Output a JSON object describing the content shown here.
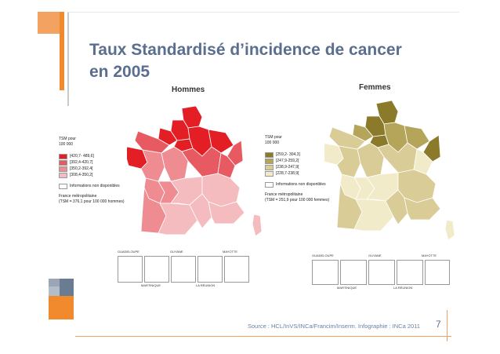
{
  "slide": {
    "title_line1": "Taux Standardisé d’incidence de cancer",
    "title_line2": "en 2005",
    "source": "Source : HCL/InVS/INCa/Francim/Inserm. Infographie : INCa 2011",
    "page_number": "7"
  },
  "panels": [
    {
      "title": "Hommes",
      "legend_header_1": "TSM pour",
      "legend_header_2": "100 000",
      "classes": [
        {
          "label": "[420,7- 489,6]",
          "color": "#e31e24"
        },
        {
          "label": "[392,4-420,7[",
          "color": "#e85a62"
        },
        {
          "label": "[350,2-392,4[",
          "color": "#ee8c92"
        },
        {
          "label": "[308,4-350,2[",
          "color": "#f5bcbf"
        }
      ],
      "na_label": "Informations non disponibles",
      "metro_label_1": "France métropolitaine",
      "metro_label_2": "(TSM = 376,1  pour 100 000 hommes)",
      "insets": [
        "GUADELOUPE",
        "GUYANE",
        "MAYOTTE",
        "MARTINIQUE",
        "LA RÉUNION"
      ]
    },
    {
      "title": "Femmes",
      "legend_header_1": "TSM pour",
      "legend_header_2": "100 000",
      "classes": [
        {
          "label": "[259,2- 304,3]",
          "color": "#8b7a2a"
        },
        {
          "label": "[247,9-259,2[",
          "color": "#b5a55a"
        },
        {
          "label": "[238,9-247,9[",
          "color": "#d9cc96"
        },
        {
          "label": "[228,7-238,9[",
          "color": "#f1ebc9"
        }
      ],
      "na_label": "Informations non disponibles",
      "metro_label_1": "France métropolitaine",
      "metro_label_2": "(TSM = 251,9  pour 100 000 femmes)",
      "insets": [
        "GUADELOUPE",
        "GUYANE",
        "MAYOTTE",
        "MARTINIQUE",
        "LA RÉUNION"
      ]
    }
  ],
  "colors": {
    "title": "#5a6e8f",
    "accent": "#f08a2c",
    "hommes_map": [
      "#e31e24",
      "#e85a62",
      "#ee8c92",
      "#f5bcbf"
    ],
    "femmes_map": [
      "#8b7a2a",
      "#b5a55a",
      "#d9cc96",
      "#f1ebc9"
    ]
  }
}
